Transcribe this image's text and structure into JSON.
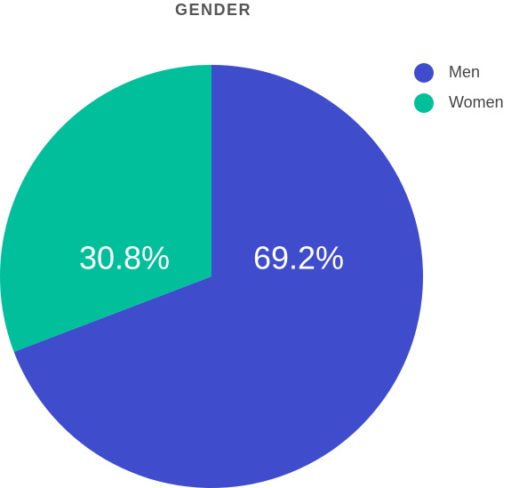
{
  "chart_data": {
    "type": "pie",
    "title": "GENDER",
    "categories": [
      "Men",
      "Women"
    ],
    "values": [
      69.2,
      30.8
    ],
    "value_labels": [
      "69.2%",
      "30.8%"
    ],
    "colors": [
      "#3f4ccb",
      "#00bf9a"
    ],
    "legend": "top-right"
  }
}
